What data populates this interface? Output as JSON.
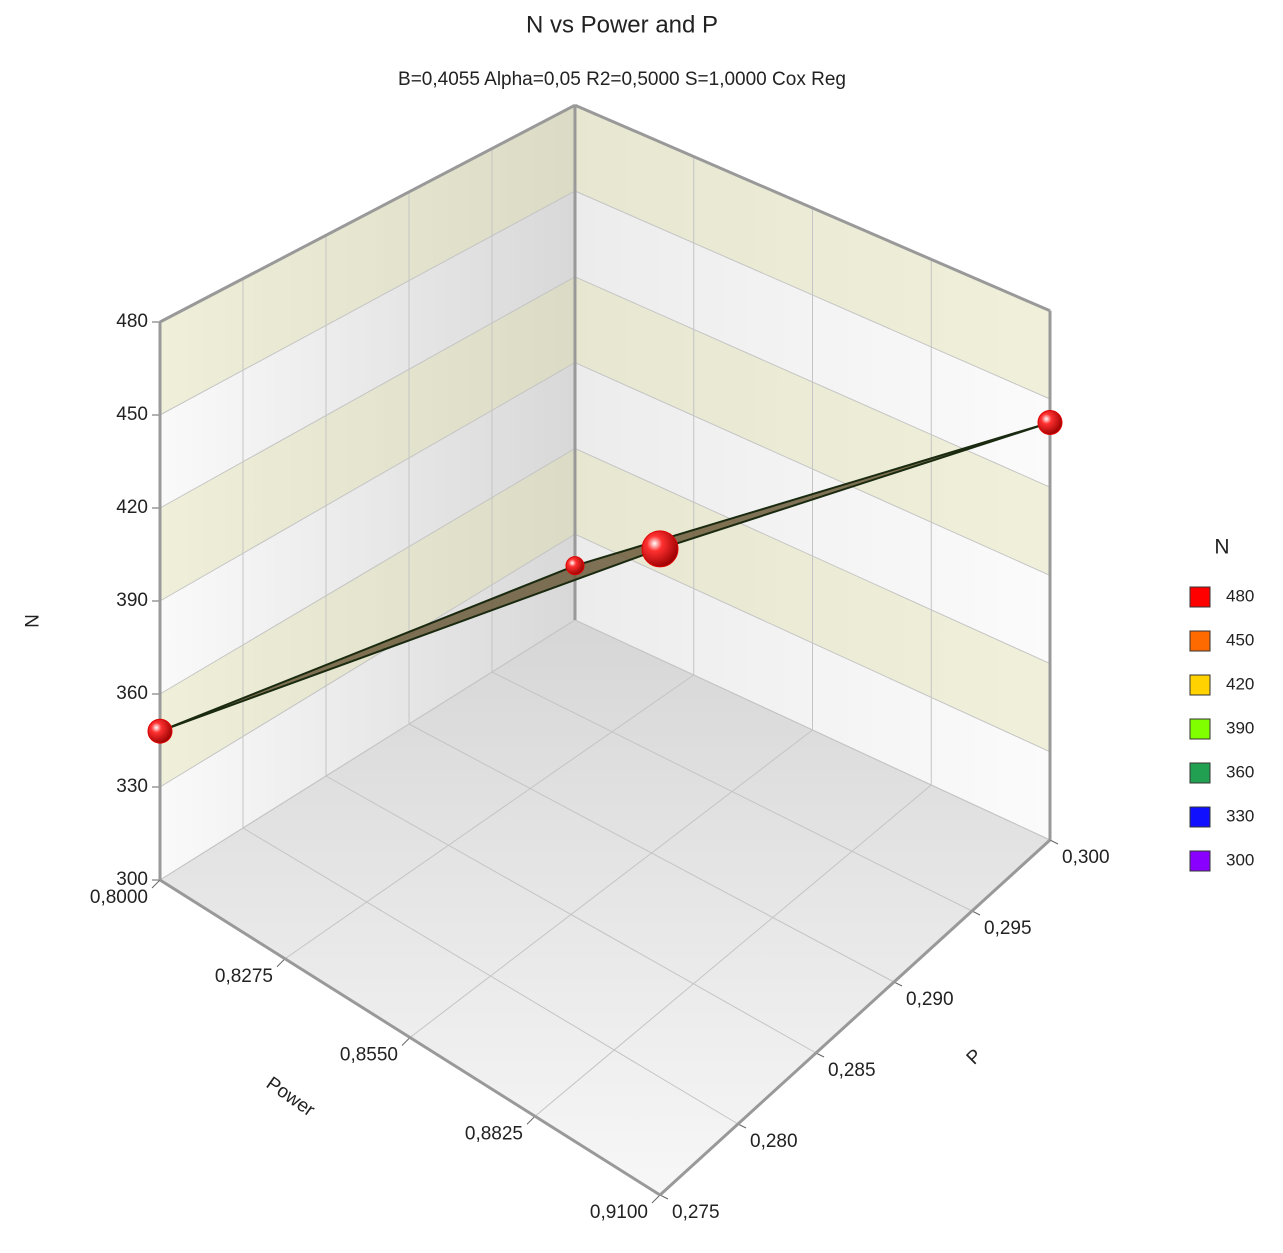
{
  "chart_data": {
    "type": "surface3d",
    "title": "N vs Power and P",
    "subtitle": "B=0,4055 Alpha=0,05 R2=0,5000 S=1,0000 Cox Reg",
    "x_label": "Power",
    "y_label": "P",
    "z_label": "N",
    "x": [
      0.8,
      0.8,
      0.91,
      0.91
    ],
    "y": [
      0.275,
      0.3,
      0.275,
      0.3
    ],
    "values": [
      348,
      319,
      482,
      442
    ],
    "xlim": [
      0.8,
      0.91
    ],
    "ylim": [
      0.275,
      0.3
    ],
    "zlim": [
      300,
      480
    ],
    "xticks": [
      {
        "value": 0.8,
        "label": "0,8000"
      },
      {
        "value": 0.8275,
        "label": "0,8275"
      },
      {
        "value": 0.855,
        "label": "0,8550"
      },
      {
        "value": 0.8825,
        "label": "0,8825"
      },
      {
        "value": 0.91,
        "label": "0,9100"
      }
    ],
    "yticks": [
      {
        "value": 0.275,
        "label": "0,275"
      },
      {
        "value": 0.28,
        "label": "0,280"
      },
      {
        "value": 0.285,
        "label": "0,285"
      },
      {
        "value": 0.29,
        "label": "0,290"
      },
      {
        "value": 0.295,
        "label": "0,295"
      },
      {
        "value": 0.3,
        "label": "0,300"
      }
    ],
    "zticks": [
      300,
      330,
      360,
      390,
      420,
      450,
      480
    ],
    "marker_color": "#e00000",
    "surface_color": "#6b5a3a",
    "legend": {
      "title": "N",
      "items": [
        {
          "value": 480,
          "color": "#ff0000"
        },
        {
          "value": 450,
          "color": "#ff6a00"
        },
        {
          "value": 420,
          "color": "#ffd200"
        },
        {
          "value": 390,
          "color": "#80ff00"
        },
        {
          "value": 360,
          "color": "#20a050"
        },
        {
          "value": 330,
          "color": "#1010ff"
        },
        {
          "value": 300,
          "color": "#8a00ff"
        }
      ]
    }
  }
}
